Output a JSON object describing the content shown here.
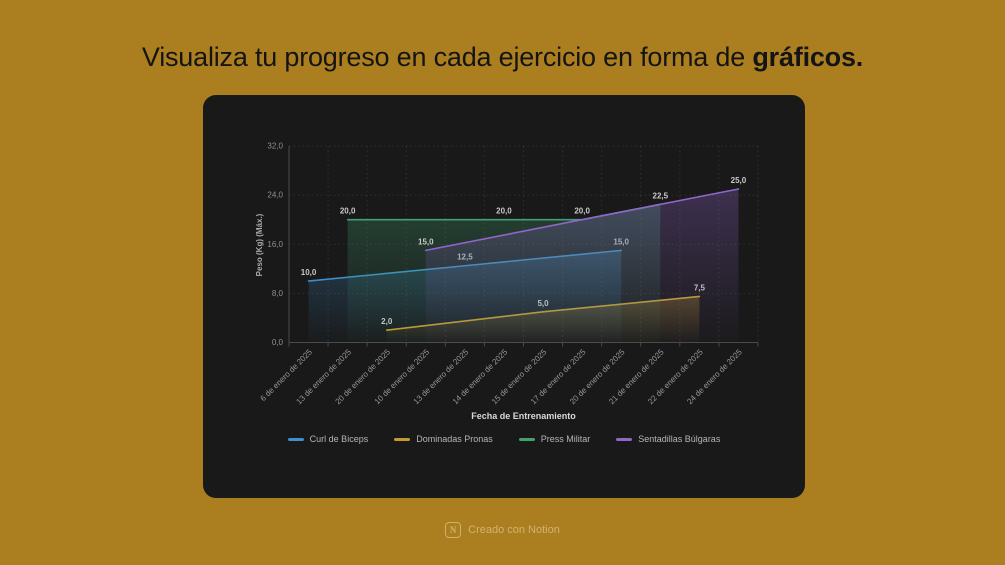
{
  "page": {
    "title_regular": "Visualiza tu progreso en cada ejercicio en forma de ",
    "title_bold": "gráficos."
  },
  "colors": {
    "background": "#ab7f20",
    "card": "#191919",
    "title_text": "#141414"
  },
  "footer": {
    "icon_letter": "N",
    "text": "Creado con Notion"
  },
  "chart_data": {
    "type": "area",
    "title": "",
    "xlabel": "Fecha de Entrenamiento",
    "ylabel": "Peso (Kg) (Máx.)",
    "ylim": [
      0,
      32
    ],
    "grid": true,
    "legend_position": "bottom",
    "y_ticks": [
      {
        "value": 0,
        "label": "0,0"
      },
      {
        "value": 8,
        "label": "8,0"
      },
      {
        "value": 16,
        "label": "16,0"
      },
      {
        "value": 24,
        "label": "24,0"
      },
      {
        "value": 32,
        "label": "32,0"
      }
    ],
    "categories": [
      "6 de enero de 2025",
      "13 de enero de 2025",
      "20 de enero de 2025",
      "10 de enero de 2025",
      "13 de enero de 2025",
      "14 de enero de 2025",
      "15 de enero de 2025",
      "17 de enero de 2025",
      "20 de enero de 2025",
      "21 de enero de 2025",
      "22 de enero de 2025",
      "24 de enero de 2025"
    ],
    "series": [
      {
        "name": "Curl de Biceps",
        "color": "#3d8ec9",
        "points": [
          {
            "category_index": 1,
            "value": 10.0,
            "label": "10,0"
          },
          {
            "category_index": 5,
            "value": 12.5,
            "label": "12,5"
          },
          {
            "category_index": 9,
            "value": 15.0,
            "label": "15,0"
          }
        ]
      },
      {
        "name": "Dominadas Pronas",
        "color": "#c09c2f",
        "points": [
          {
            "category_index": 3,
            "value": 2.0,
            "label": "2,0"
          },
          {
            "category_index": 7,
            "value": 5.0,
            "label": "5,0"
          },
          {
            "category_index": 11,
            "value": 7.5,
            "label": "7,5"
          }
        ]
      },
      {
        "name": "Press Militar",
        "color": "#41a173",
        "points": [
          {
            "category_index": 2,
            "value": 20.0,
            "label": "20,0"
          },
          {
            "category_index": 6,
            "value": 20.0,
            "label": "20,0"
          },
          {
            "category_index": 8,
            "value": 20.0,
            "label": "20,0"
          },
          {
            "category_index": 10,
            "value": 22.5,
            "label": "22,5"
          }
        ]
      },
      {
        "name": "Sentadillas Búlgaras",
        "color": "#9166cc",
        "points": [
          {
            "category_index": 4,
            "value": 15.0,
            "label": "15,0"
          },
          {
            "category_index": 12,
            "value": 25.0,
            "label": "25,0"
          }
        ]
      }
    ]
  }
}
